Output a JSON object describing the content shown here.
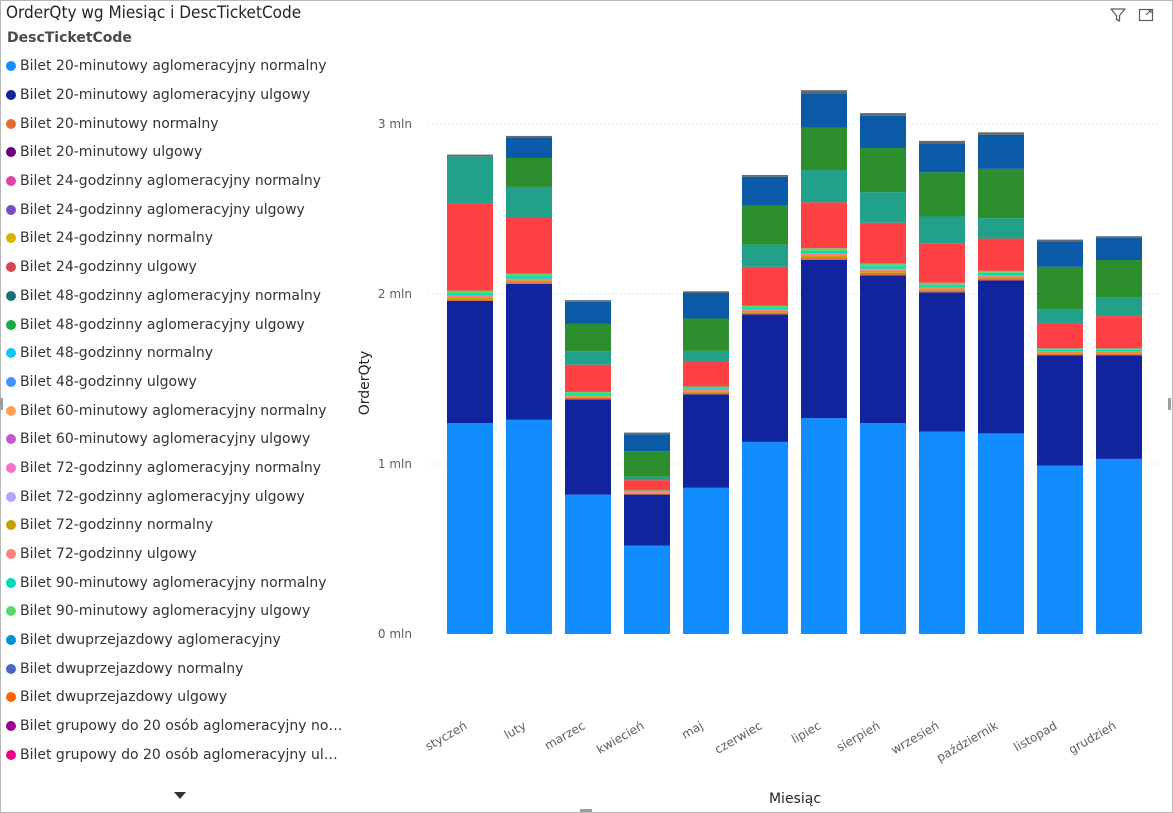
{
  "visual": {
    "title": "OrderQty wg Miesiąc i DescTicketCode",
    "filter_icon": "filter-icon",
    "focus_icon": "focus-mode-icon"
  },
  "legend": {
    "title": "DescTicketCode",
    "items": [
      {
        "label": "Bilet 20-minutowy aglomeracyjny normalny",
        "color": "#118DFF"
      },
      {
        "label": "Bilet 20-minutowy aglomeracyjny ulgowy",
        "color": "#12239E"
      },
      {
        "label": "Bilet 20-minutowy normalny",
        "color": "#E66C37"
      },
      {
        "label": "Bilet 20-minutowy ulgowy",
        "color": "#6B007B"
      },
      {
        "label": "Bilet 24-godzinny aglomeracyjny normalny",
        "color": "#E044A7"
      },
      {
        "label": "Bilet 24-godzinny aglomeracyjny ulgowy",
        "color": "#744EC2"
      },
      {
        "label": "Bilet 24-godzinny normalny",
        "color": "#D9B300"
      },
      {
        "label": "Bilet 24-godzinny ulgowy",
        "color": "#D64550"
      },
      {
        "label": "Bilet 48-godzinny aglomeracyjny normalny",
        "color": "#197278"
      },
      {
        "label": "Bilet 48-godzinny aglomeracyjny ulgowy",
        "color": "#1AAB40"
      },
      {
        "label": "Bilet 48-godzinny normalny",
        "color": "#15C6F4"
      },
      {
        "label": "Bilet 48-godzinny ulgowy",
        "color": "#4092FF"
      },
      {
        "label": "Bilet 60-minutowy aglomeracyjny normalny",
        "color": "#FFA058"
      },
      {
        "label": "Bilet 60-minutowy aglomeracyjny ulgowy",
        "color": "#BE5DC9"
      },
      {
        "label": "Bilet 72-godzinny aglomeracyjny normalny",
        "color": "#F472D0"
      },
      {
        "label": "Bilet 72-godzinny aglomeracyjny ulgowy",
        "color": "#B5A1FF"
      },
      {
        "label": "Bilet 72-godzinny normalny",
        "color": "#C4A200"
      },
      {
        "label": "Bilet 72-godzinny ulgowy",
        "color": "#FF8080"
      },
      {
        "label": "Bilet 90-minutowy aglomeracyjny normalny",
        "color": "#00DBBC"
      },
      {
        "label": "Bilet 90-minutowy aglomeracyjny ulgowy",
        "color": "#5BD667"
      },
      {
        "label": "Bilet dwuprzejazdowy aglomeracyjny",
        "color": "#0091D5"
      },
      {
        "label": "Bilet dwuprzejazdowy normalny",
        "color": "#4668C5"
      },
      {
        "label": "Bilet dwuprzejazdowy ulgowy",
        "color": "#FF6300"
      },
      {
        "label": "Bilet grupowy do 20 osób aglomeracyjny norm...",
        "color": "#99008A"
      },
      {
        "label": "Bilet grupowy do 20 osób aglomeracyjny ulgo...",
        "color": "#EC008C"
      }
    ]
  },
  "chart_data": {
    "type": "bar",
    "stacked": true,
    "xlabel": "Miesiąc",
    "ylabel": "OrderQty",
    "ylim": [
      0,
      3200000
    ],
    "yticks": [
      0,
      1000000,
      2000000,
      3000000
    ],
    "ytick_labels": [
      "0 mln",
      "1 mln",
      "2 mln",
      "3 mln"
    ],
    "grid": true,
    "categories": [
      "styczeń",
      "luty",
      "marzec",
      "kwiecień",
      "maj",
      "czerwiec",
      "lipiec",
      "sierpień",
      "wrzesień",
      "październik",
      "listopad",
      "grudzień"
    ],
    "series": [
      {
        "color": "#118DFF",
        "values": [
          1240000,
          1260000,
          820000,
          520000,
          860000,
          1130000,
          1270000,
          1240000,
          1190000,
          1180000,
          990000,
          1030000
        ]
      },
      {
        "color": "#12239E",
        "values": [
          720000,
          800000,
          560000,
          300000,
          550000,
          750000,
          930000,
          870000,
          820000,
          900000,
          650000,
          610000
        ]
      },
      {
        "color": "#E66C37",
        "values": [
          10000,
          10000,
          10000,
          5000,
          10000,
          10000,
          15000,
          15000,
          12000,
          12000,
          8000,
          8000
        ]
      },
      {
        "color": "#C4A200",
        "values": [
          10000,
          10000,
          8000,
          5000,
          8000,
          10000,
          12000,
          12000,
          10000,
          10000,
          8000,
          8000
        ]
      },
      {
        "color": "#FF8080",
        "values": [
          10000,
          10000,
          8000,
          5000,
          8000,
          10000,
          12000,
          12000,
          10000,
          10000,
          8000,
          8000
        ]
      },
      {
        "color": "#00DBBC",
        "values": [
          15000,
          15000,
          8000,
          5000,
          10000,
          10000,
          15000,
          15000,
          12000,
          12000,
          8000,
          8000
        ]
      },
      {
        "color": "#5BD667",
        "values": [
          15000,
          15000,
          10000,
          5000,
          10000,
          10000,
          15000,
          15000,
          12000,
          12000,
          8000,
          8000
        ]
      },
      {
        "color": "#FF4146",
        "values": [
          510000,
          330000,
          160000,
          60000,
          150000,
          230000,
          270000,
          240000,
          230000,
          190000,
          150000,
          190000
        ]
      },
      {
        "color": "#21A08A",
        "values": [
          280000,
          180000,
          80000,
          20000,
          60000,
          130000,
          190000,
          180000,
          160000,
          120000,
          80000,
          110000
        ]
      },
      {
        "color": "#2C8E2C",
        "values": [
          0,
          170000,
          160000,
          150000,
          190000,
          230000,
          250000,
          260000,
          260000,
          290000,
          250000,
          220000
        ]
      },
      {
        "color": "#0B5AA8",
        "values": [
          0,
          120000,
          130000,
          100000,
          150000,
          170000,
          200000,
          190000,
          170000,
          200000,
          150000,
          130000
        ]
      },
      {
        "color": "#5F6B6D",
        "values": [
          10000,
          10000,
          10000,
          10000,
          10000,
          10000,
          20000,
          15000,
          15000,
          15000,
          10000,
          10000
        ]
      }
    ]
  }
}
